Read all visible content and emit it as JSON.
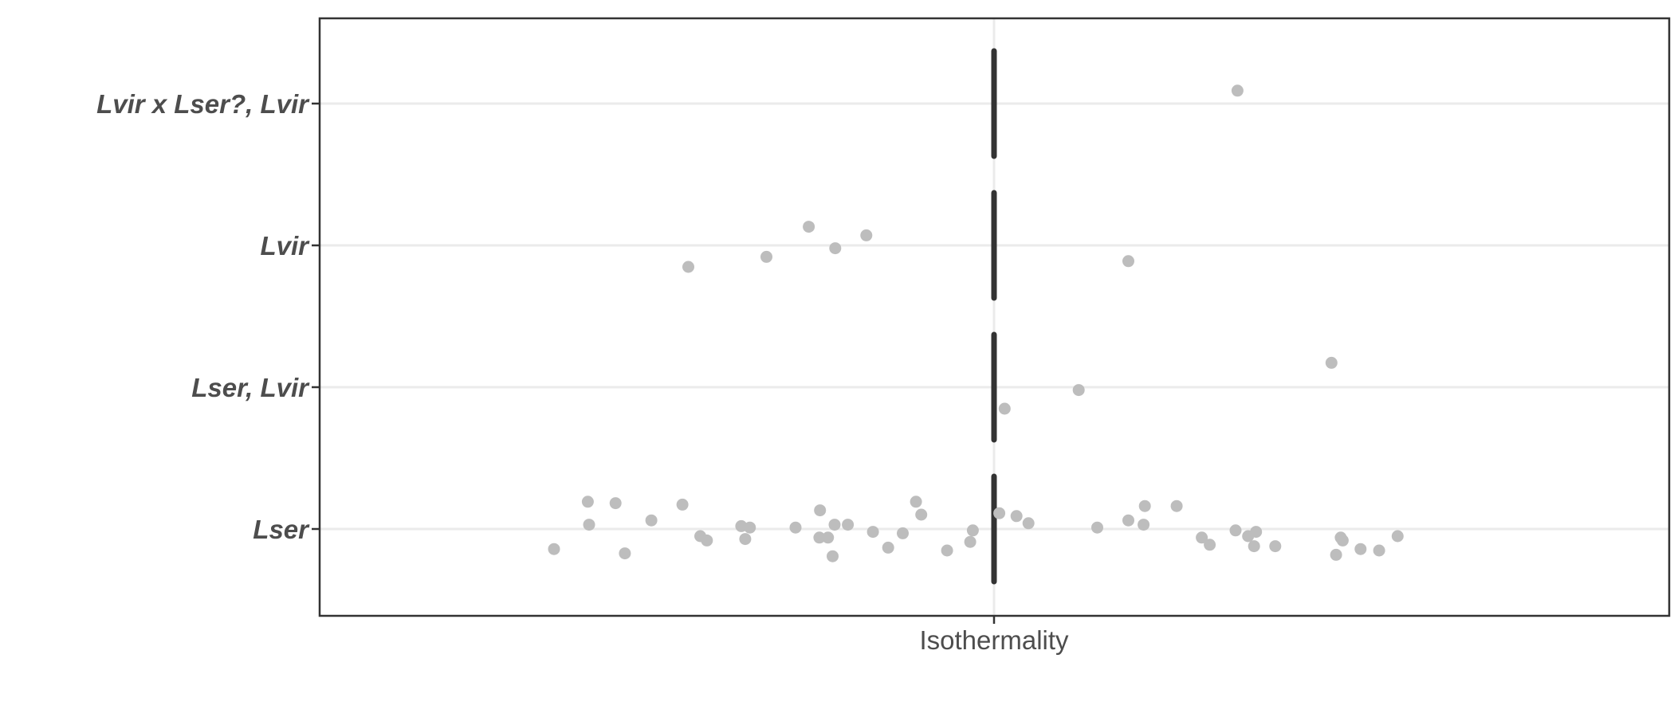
{
  "chart_data": {
    "type": "scatter",
    "title": "",
    "xlabel": "",
    "ylabel": "",
    "x_tick_labels": [
      "Isothermality"
    ],
    "categories": [
      "Lvir x Lser?, Lvir",
      "Lvir",
      "Lser, Lvir",
      "Lser"
    ],
    "xlim": [
      -1,
      1
    ],
    "grid": true,
    "legend": "none",
    "point_color": "#bdbdbd",
    "reference_line_color": "#333333",
    "series": [
      {
        "values": [
          {
            "category": "Lvir x Lser?, Lvir",
            "x": 0.368,
            "y_jitter": 0.09
          },
          {
            "category": "Lvir",
            "x": -0.462,
            "y_jitter": -0.15
          },
          {
            "category": "Lvir",
            "x": -0.344,
            "y_jitter": -0.08
          },
          {
            "category": "Lvir",
            "x": -0.28,
            "y_jitter": 0.13
          },
          {
            "category": "Lvir",
            "x": -0.24,
            "y_jitter": -0.02
          },
          {
            "category": "Lvir",
            "x": -0.193,
            "y_jitter": 0.07
          },
          {
            "category": "Lvir",
            "x": 0.203,
            "y_jitter": -0.11
          },
          {
            "category": "Lser, Lvir",
            "x": 0.016,
            "y_jitter": -0.15
          },
          {
            "category": "Lser, Lvir",
            "x": 0.128,
            "y_jitter": -0.02
          },
          {
            "category": "Lser, Lvir",
            "x": 0.51,
            "y_jitter": 0.17
          },
          {
            "category": "Lser",
            "x": -0.665,
            "y_jitter": -0.14
          },
          {
            "category": "Lser",
            "x": -0.614,
            "y_jitter": 0.19
          },
          {
            "category": "Lser",
            "x": -0.612,
            "y_jitter": 0.03
          },
          {
            "category": "Lser",
            "x": -0.572,
            "y_jitter": 0.18
          },
          {
            "category": "Lser",
            "x": -0.558,
            "y_jitter": -0.17
          },
          {
            "category": "Lser",
            "x": -0.518,
            "y_jitter": 0.06
          },
          {
            "category": "Lser",
            "x": -0.471,
            "y_jitter": 0.17
          },
          {
            "category": "Lser",
            "x": -0.444,
            "y_jitter": -0.05
          },
          {
            "category": "Lser",
            "x": -0.434,
            "y_jitter": -0.08
          },
          {
            "category": "Lser",
            "x": -0.382,
            "y_jitter": 0.02
          },
          {
            "category": "Lser",
            "x": -0.376,
            "y_jitter": -0.07
          },
          {
            "category": "Lser",
            "x": -0.369,
            "y_jitter": 0.01
          },
          {
            "category": "Lser",
            "x": -0.3,
            "y_jitter": 0.01
          },
          {
            "category": "Lser",
            "x": -0.264,
            "y_jitter": -0.06
          },
          {
            "category": "Lser",
            "x": -0.263,
            "y_jitter": 0.13
          },
          {
            "category": "Lser",
            "x": -0.251,
            "y_jitter": -0.06
          },
          {
            "category": "Lser",
            "x": -0.244,
            "y_jitter": -0.19
          },
          {
            "category": "Lser",
            "x": -0.241,
            "y_jitter": 0.03
          },
          {
            "category": "Lser",
            "x": -0.221,
            "y_jitter": 0.03
          },
          {
            "category": "Lser",
            "x": -0.183,
            "y_jitter": -0.02
          },
          {
            "category": "Lser",
            "x": -0.16,
            "y_jitter": -0.13
          },
          {
            "category": "Lser",
            "x": -0.138,
            "y_jitter": -0.03
          },
          {
            "category": "Lser",
            "x": -0.118,
            "y_jitter": 0.19
          },
          {
            "category": "Lser",
            "x": -0.11,
            "y_jitter": 0.1
          },
          {
            "category": "Lser",
            "x": -0.071,
            "y_jitter": -0.15
          },
          {
            "category": "Lser",
            "x": -0.036,
            "y_jitter": -0.09
          },
          {
            "category": "Lser",
            "x": -0.032,
            "y_jitter": -0.01
          },
          {
            "category": "Lser",
            "x": 0.008,
            "y_jitter": 0.11
          },
          {
            "category": "Lser",
            "x": 0.034,
            "y_jitter": 0.09
          },
          {
            "category": "Lser",
            "x": 0.052,
            "y_jitter": 0.04
          },
          {
            "category": "Lser",
            "x": 0.156,
            "y_jitter": 0.01
          },
          {
            "category": "Lser",
            "x": 0.203,
            "y_jitter": 0.06
          },
          {
            "category": "Lser",
            "x": 0.226,
            "y_jitter": 0.03
          },
          {
            "category": "Lser",
            "x": 0.228,
            "y_jitter": 0.16
          },
          {
            "category": "Lser",
            "x": 0.276,
            "y_jitter": 0.16
          },
          {
            "category": "Lser",
            "x": 0.314,
            "y_jitter": -0.06
          },
          {
            "category": "Lser",
            "x": 0.326,
            "y_jitter": -0.11
          },
          {
            "category": "Lser",
            "x": 0.365,
            "y_jitter": -0.01
          },
          {
            "category": "Lser",
            "x": 0.384,
            "y_jitter": -0.05
          },
          {
            "category": "Lser",
            "x": 0.393,
            "y_jitter": -0.12
          },
          {
            "category": "Lser",
            "x": 0.396,
            "y_jitter": -0.02
          },
          {
            "category": "Lser",
            "x": 0.425,
            "y_jitter": -0.12
          },
          {
            "category": "Lser",
            "x": 0.517,
            "y_jitter": -0.18
          },
          {
            "category": "Lser",
            "x": 0.524,
            "y_jitter": -0.06
          },
          {
            "category": "Lser",
            "x": 0.527,
            "y_jitter": -0.08
          },
          {
            "category": "Lser",
            "x": 0.554,
            "y_jitter": -0.14
          },
          {
            "category": "Lser",
            "x": 0.582,
            "y_jitter": -0.15
          },
          {
            "category": "Lser",
            "x": 0.61,
            "y_jitter": -0.05
          }
        ]
      }
    ]
  }
}
